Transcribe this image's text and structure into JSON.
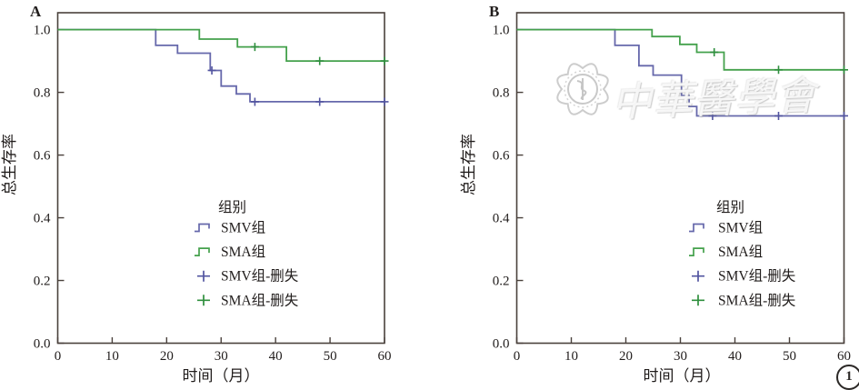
{
  "figure": {
    "watermark_text": "中華醫學會",
    "figure_number": "1",
    "colors": {
      "frame": "#4a413c",
      "text": "#211d1c",
      "smv_blue": "#6668ab",
      "sma_green": "#44a14c",
      "watermark_gray": "#c9c9c9"
    }
  },
  "chart_data": [
    {
      "type": "line",
      "subtype": "kaplan-meier-step",
      "panel_label": "A",
      "xlabel": "时间（月）",
      "ylabel": "总生存率",
      "xlim": [
        0,
        60
      ],
      "ylim": [
        0,
        1.054
      ],
      "grid": false,
      "xticks": [
        0,
        10,
        20,
        30,
        40,
        50,
        60
      ],
      "yticks": [
        {
          "label": "1.0",
          "value": 1.0
        },
        {
          "label": "0.8",
          "value": 0.8
        },
        {
          "label": "0.6",
          "value": 0.6
        },
        {
          "label": "0.4",
          "value": 0.4
        },
        {
          "label": "0.2",
          "value": 0.2
        },
        {
          "label": "0.0",
          "value": 0.0
        }
      ],
      "legend_title": "组别",
      "legend_position": "inside-center-bottom",
      "series": [
        {
          "name": "SMV组",
          "color": "#6668ab",
          "kind": "step",
          "points": [
            [
              0,
              1.0
            ],
            [
              18,
              1.0
            ],
            [
              18,
              0.95
            ],
            [
              22,
              0.95
            ],
            [
              22,
              0.925
            ],
            [
              28,
              0.925
            ],
            [
              28,
              0.87
            ],
            [
              30,
              0.87
            ],
            [
              30,
              0.82
            ],
            [
              32.8,
              0.82
            ],
            [
              32.8,
              0.795
            ],
            [
              35.3,
              0.795
            ],
            [
              35.3,
              0.77
            ],
            [
              60,
              0.77
            ]
          ]
        },
        {
          "name": "SMA组",
          "color": "#44a14c",
          "kind": "step",
          "points": [
            [
              0,
              1.0
            ],
            [
              26,
              1.0
            ],
            [
              26,
              0.97
            ],
            [
              33,
              0.97
            ],
            [
              33,
              0.945
            ],
            [
              42,
              0.945
            ],
            [
              42,
              0.9
            ],
            [
              60,
              0.9
            ]
          ]
        },
        {
          "name": "SMV组-删失",
          "color": "#5254a0",
          "kind": "censor",
          "points": [
            [
              28.3,
              0.87
            ],
            [
              36.2,
              0.77
            ],
            [
              48.1,
              0.77
            ],
            [
              60,
              0.77
            ]
          ]
        },
        {
          "name": "SMA组-删失",
          "color": "#2f8f3e",
          "kind": "censor",
          "points": [
            [
              36.2,
              0.945
            ],
            [
              48.1,
              0.9
            ],
            [
              60,
              0.9
            ]
          ]
        }
      ]
    },
    {
      "type": "line",
      "subtype": "kaplan-meier-step",
      "panel_label": "B",
      "xlabel": "时间（月）",
      "ylabel": "总生存率",
      "xlim": [
        0,
        60
      ],
      "ylim": [
        0,
        1.054
      ],
      "grid": false,
      "xticks": [
        0,
        10,
        20,
        30,
        40,
        50,
        60
      ],
      "yticks": [
        {
          "label": "1.0",
          "value": 1.0
        },
        {
          "label": "0.8",
          "value": 0.8
        },
        {
          "label": "0.6",
          "value": 0.6
        },
        {
          "label": "0.4",
          "value": 0.4
        },
        {
          "label": "0.2",
          "value": 0.2
        },
        {
          "label": "0.0",
          "value": 0.0
        }
      ],
      "legend_title": "组别",
      "legend_position": "inside-center-bottom",
      "series": [
        {
          "name": "SMV组",
          "color": "#6668ab",
          "kind": "step",
          "points": [
            [
              0,
              1.0
            ],
            [
              18,
              1.0
            ],
            [
              18,
              0.95
            ],
            [
              22.4,
              0.95
            ],
            [
              22.4,
              0.885
            ],
            [
              25,
              0.885
            ],
            [
              25,
              0.855
            ],
            [
              30.2,
              0.855
            ],
            [
              30.2,
              0.79
            ],
            [
              31.6,
              0.79
            ],
            [
              31.6,
              0.755
            ],
            [
              33,
              0.755
            ],
            [
              33,
              0.725
            ],
            [
              60,
              0.725
            ]
          ]
        },
        {
          "name": "SMA组",
          "color": "#44a14c",
          "kind": "step",
          "points": [
            [
              0,
              1.0
            ],
            [
              24.8,
              1.0
            ],
            [
              24.8,
              0.978
            ],
            [
              29.9,
              0.978
            ],
            [
              29.9,
              0.953
            ],
            [
              33,
              0.953
            ],
            [
              33,
              0.928
            ],
            [
              38,
              0.928
            ],
            [
              38,
              0.872
            ],
            [
              60,
              0.872
            ]
          ]
        },
        {
          "name": "SMV组-删失",
          "color": "#5254a0",
          "kind": "censor",
          "points": [
            [
              35.9,
              0.725
            ],
            [
              48,
              0.725
            ],
            [
              60,
              0.725
            ]
          ]
        },
        {
          "name": "SMA组-删失",
          "color": "#2f8f3e",
          "kind": "censor",
          "points": [
            [
              36.2,
              0.928
            ],
            [
              48,
              0.872
            ],
            [
              60,
              0.872
            ]
          ]
        }
      ]
    }
  ]
}
